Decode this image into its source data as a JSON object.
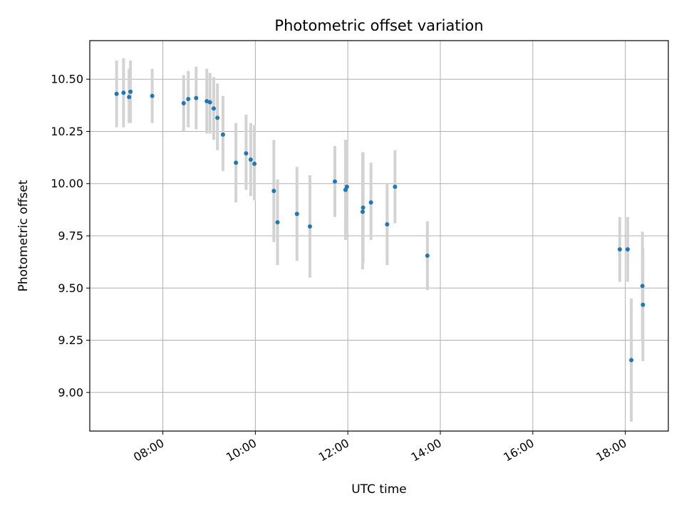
{
  "chart_data": {
    "type": "scatter",
    "title": "Photometric offset variation",
    "xlabel": "UTC time",
    "ylabel": "Photometric offset",
    "x_unit": "hours UTC",
    "xlim": [
      6.42,
      18.93
    ],
    "ylim": [
      8.815,
      10.685
    ],
    "x_ticks": [
      {
        "value": 8,
        "label": "08:00"
      },
      {
        "value": 10,
        "label": "10:00"
      },
      {
        "value": 12,
        "label": "12:00"
      },
      {
        "value": 14,
        "label": "14:00"
      },
      {
        "value": 16,
        "label": "16:00"
      },
      {
        "value": 18,
        "label": "18:00"
      }
    ],
    "y_ticks": [
      {
        "value": 9.0,
        "label": "9.00"
      },
      {
        "value": 9.25,
        "label": "9.25"
      },
      {
        "value": 9.5,
        "label": "9.50"
      },
      {
        "value": 9.75,
        "label": "9.75"
      },
      {
        "value": 10.0,
        "label": "10.00"
      },
      {
        "value": 10.25,
        "label": "10.25"
      },
      {
        "value": 10.5,
        "label": "10.50"
      }
    ],
    "grid": true,
    "colors": {
      "point": "#1f77b4",
      "error_bar": "#d3d3d3",
      "grid": "#b0b0b0"
    },
    "points": [
      {
        "x": 7.0,
        "y": 10.43,
        "ylo": 10.27,
        "yhi": 10.59
      },
      {
        "x": 7.15,
        "y": 10.435,
        "ylo": 10.27,
        "yhi": 10.6
      },
      {
        "x": 7.27,
        "y": 10.415,
        "ylo": 10.29,
        "yhi": 10.55
      },
      {
        "x": 7.3,
        "y": 10.44,
        "ylo": 10.29,
        "yhi": 10.59
      },
      {
        "x": 7.77,
        "y": 10.42,
        "ylo": 10.29,
        "yhi": 10.55
      },
      {
        "x": 8.45,
        "y": 10.385,
        "ylo": 10.25,
        "yhi": 10.52
      },
      {
        "x": 8.55,
        "y": 10.405,
        "ylo": 10.27,
        "yhi": 10.54
      },
      {
        "x": 8.72,
        "y": 10.41,
        "ylo": 10.26,
        "yhi": 10.56
      },
      {
        "x": 8.95,
        "y": 10.395,
        "ylo": 10.24,
        "yhi": 10.55
      },
      {
        "x": 9.02,
        "y": 10.39,
        "ylo": 10.24,
        "yhi": 10.53
      },
      {
        "x": 9.1,
        "y": 10.36,
        "ylo": 10.21,
        "yhi": 10.51
      },
      {
        "x": 9.18,
        "y": 10.315,
        "ylo": 10.16,
        "yhi": 10.48
      },
      {
        "x": 9.3,
        "y": 10.235,
        "ylo": 10.06,
        "yhi": 10.42
      },
      {
        "x": 9.58,
        "y": 10.1,
        "ylo": 9.91,
        "yhi": 10.29
      },
      {
        "x": 9.8,
        "y": 10.145,
        "ylo": 9.97,
        "yhi": 10.33
      },
      {
        "x": 9.9,
        "y": 10.115,
        "ylo": 9.94,
        "yhi": 10.29
      },
      {
        "x": 9.98,
        "y": 10.095,
        "ylo": 9.92,
        "yhi": 10.28
      },
      {
        "x": 10.4,
        "y": 9.965,
        "ylo": 9.72,
        "yhi": 10.21
      },
      {
        "x": 10.48,
        "y": 9.815,
        "ylo": 9.61,
        "yhi": 10.02
      },
      {
        "x": 10.9,
        "y": 9.855,
        "ylo": 9.63,
        "yhi": 10.08
      },
      {
        "x": 11.18,
        "y": 9.795,
        "ylo": 9.55,
        "yhi": 10.04
      },
      {
        "x": 11.72,
        "y": 10.01,
        "ylo": 9.84,
        "yhi": 10.18
      },
      {
        "x": 11.95,
        "y": 9.97,
        "ylo": 9.73,
        "yhi": 10.21
      },
      {
        "x": 11.98,
        "y": 9.985,
        "ylo": 9.76,
        "yhi": 10.21
      },
      {
        "x": 12.32,
        "y": 9.865,
        "ylo": 9.59,
        "yhi": 10.15
      },
      {
        "x": 12.33,
        "y": 9.885,
        "ylo": 9.62,
        "yhi": 10.15
      },
      {
        "x": 12.5,
        "y": 9.91,
        "ylo": 9.73,
        "yhi": 10.1
      },
      {
        "x": 12.85,
        "y": 9.805,
        "ylo": 9.61,
        "yhi": 10.0
      },
      {
        "x": 13.02,
        "y": 9.985,
        "ylo": 9.81,
        "yhi": 10.16
      },
      {
        "x": 13.72,
        "y": 9.655,
        "ylo": 9.49,
        "yhi": 9.82
      },
      {
        "x": 17.88,
        "y": 9.685,
        "ylo": 9.53,
        "yhi": 9.84
      },
      {
        "x": 18.05,
        "y": 9.685,
        "ylo": 9.53,
        "yhi": 9.84
      },
      {
        "x": 18.13,
        "y": 9.155,
        "ylo": 8.86,
        "yhi": 9.45
      },
      {
        "x": 18.37,
        "y": 9.51,
        "ylo": 9.25,
        "yhi": 9.77
      },
      {
        "x": 18.38,
        "y": 9.42,
        "ylo": 9.15,
        "yhi": 9.69
      }
    ]
  }
}
